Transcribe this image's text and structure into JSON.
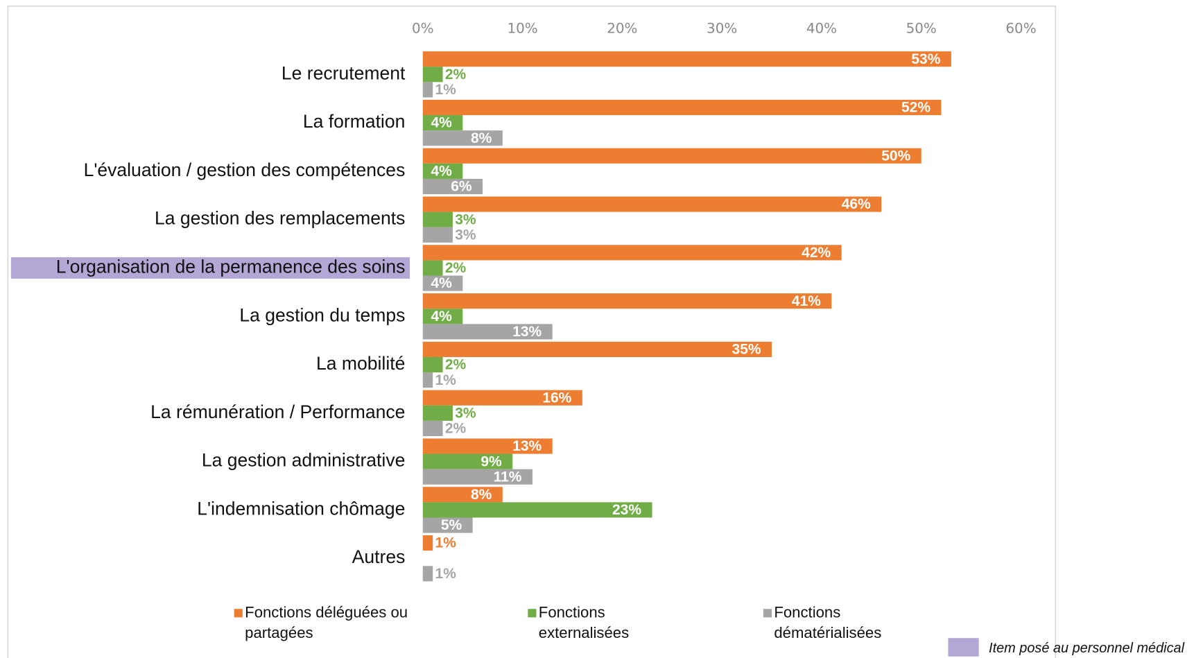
{
  "chart_data": {
    "type": "bar",
    "orientation": "horizontal",
    "categories": [
      "Le recrutement",
      "La formation",
      "L'évaluation / gestion des compétences",
      "La gestion des remplacements",
      "L'organisation de la permanence des soins",
      "La gestion du temps",
      "La mobilité",
      "La rémunération / Performance",
      "La gestion administrative",
      "L'indemnisation chômage",
      "Autres"
    ],
    "series": [
      {
        "name": "Fonctions déléguées ou partagées",
        "color": "#ed7d31",
        "values": [
          53,
          52,
          50,
          46,
          42,
          41,
          35,
          16,
          13,
          8,
          1
        ],
        "value_labels": [
          "53%",
          "52%",
          "50%",
          "46%",
          "42%",
          "41%",
          "35%",
          "16%",
          "13%",
          "8%",
          "1%"
        ]
      },
      {
        "name": "Fonctions externalisées",
        "color": "#70ad47",
        "values": [
          2,
          4,
          4,
          3,
          2,
          4,
          2,
          3,
          9,
          23,
          null
        ],
        "value_labels": [
          "2%",
          "4%",
          "4%",
          "3%",
          "2%",
          "4%",
          "2%",
          "3%",
          "9%",
          "23%",
          null
        ]
      },
      {
        "name": "Fonctions dématérialisées",
        "color": "#a5a5a5",
        "values": [
          1,
          8,
          6,
          3,
          4,
          13,
          1,
          2,
          11,
          5,
          1
        ],
        "value_labels": [
          "1%",
          "8%",
          "6%",
          "3%",
          "4%",
          "13%",
          "1%",
          "2%",
          "11%",
          "5%",
          "1%"
        ]
      }
    ],
    "xlim": [
      0,
      60
    ],
    "xticks": [
      {
        "value": 0,
        "label": "0%"
      },
      {
        "value": 10,
        "label": "10%"
      },
      {
        "value": 20,
        "label": "20%"
      },
      {
        "value": 30,
        "label": "30%"
      },
      {
        "value": 40,
        "label": "40%"
      },
      {
        "value": 50,
        "label": "50%"
      },
      {
        "value": 60,
        "label": "60%"
      }
    ],
    "highlighted_category": 4,
    "highlight_color": "#b4a7d6",
    "note": "Item posé au personnel médical"
  }
}
